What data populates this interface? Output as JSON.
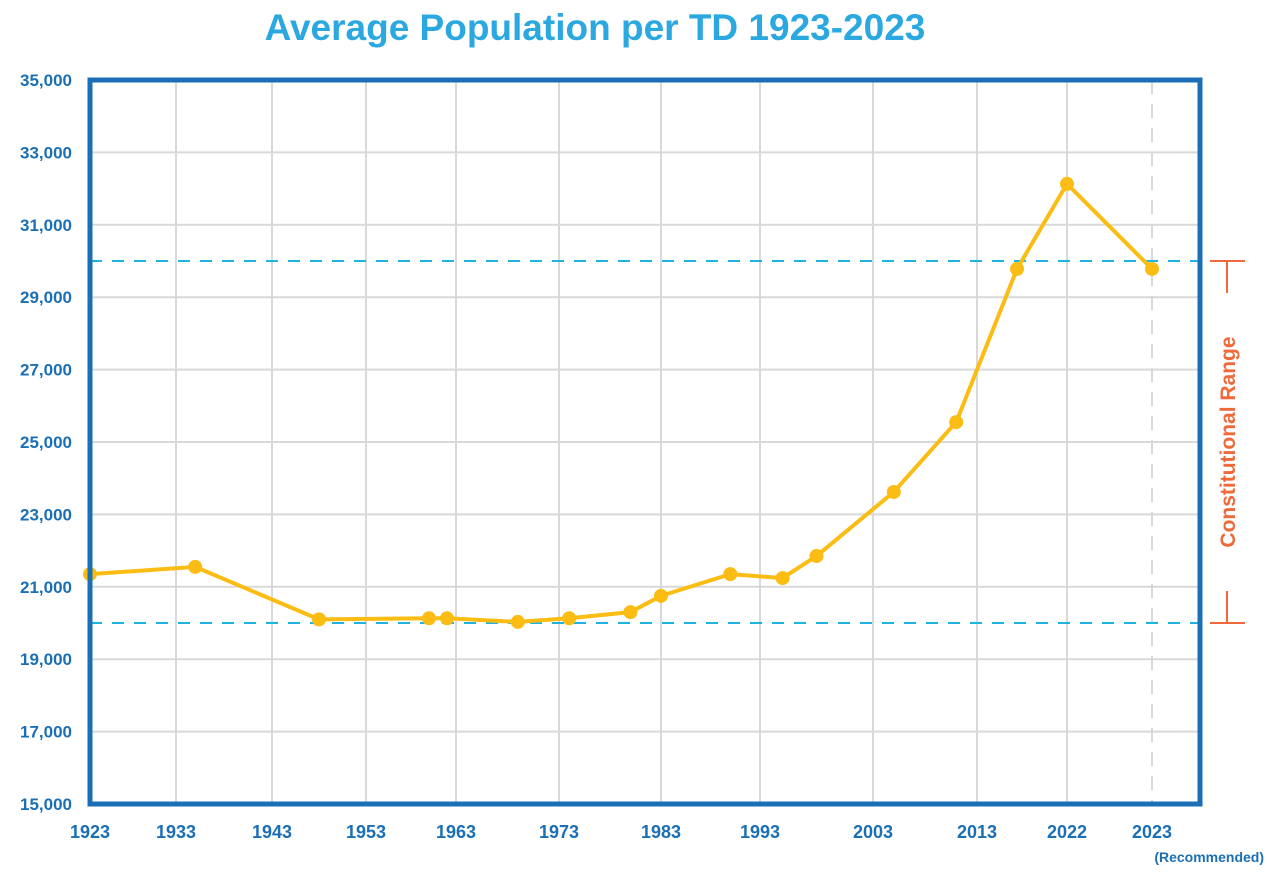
{
  "chart_data": {
    "type": "line",
    "title": "Average Population per TD 1923-2023",
    "xlabel": "",
    "ylabel": "",
    "ylim": [
      15000,
      35000
    ],
    "yticks": [
      15000,
      17000,
      19000,
      21000,
      23000,
      25000,
      27000,
      29000,
      31000,
      33000,
      35000
    ],
    "ytick_labels": [
      "15,000",
      "17,000",
      "19,000",
      "21,000",
      "23,000",
      "25,000",
      "27,000",
      "29,000",
      "31,000",
      "33,000",
      "35,000"
    ],
    "xticks": [
      1923,
      1933,
      1943,
      1953,
      1963,
      1973,
      1983,
      1993,
      2003,
      2013,
      2022,
      2023
    ],
    "xtick_labels": [
      "1923",
      "1933",
      "1943",
      "1953",
      "1963",
      "1973",
      "1983",
      "1993",
      "2003",
      "2013",
      "2022",
      "2023"
    ],
    "xtick_sublabels": {
      "2023": "(Recommended)"
    },
    "grid": true,
    "series": [
      {
        "name": "Average Population per TD",
        "color": "#fbbd13",
        "x": [
          1923,
          1935,
          1948,
          1960,
          1962,
          1969,
          1974,
          1980,
          1983,
          1990,
          1995,
          1998,
          2005,
          2011,
          2017,
          2022,
          2023
        ],
        "values": [
          21350,
          21550,
          20100,
          20130,
          20130,
          20030,
          20130,
          20300,
          20750,
          21350,
          21240,
          21850,
          23620,
          25550,
          29780,
          32130,
          29780
        ]
      }
    ],
    "reference_lines": [
      {
        "name": "Constitutional Range lower bound",
        "value": 20000,
        "color": "#1fb3e0"
      },
      {
        "name": "Constitutional Range upper bound",
        "value": 30000,
        "color": "#1fb3e0"
      }
    ],
    "annotations": [
      {
        "text": "Constitutional Range",
        "from": 20000,
        "to": 30000,
        "color": "#ef6a3a",
        "placement": "right"
      }
    ],
    "colors": {
      "title": "#2ba8e0",
      "axis": "#1a6fb5",
      "tick_text": "#1a6fb5",
      "grid": "#d9d9d9",
      "line": "#fbbd13",
      "reference": "#1fb3e0",
      "annotation": "#ef6a3a"
    }
  }
}
